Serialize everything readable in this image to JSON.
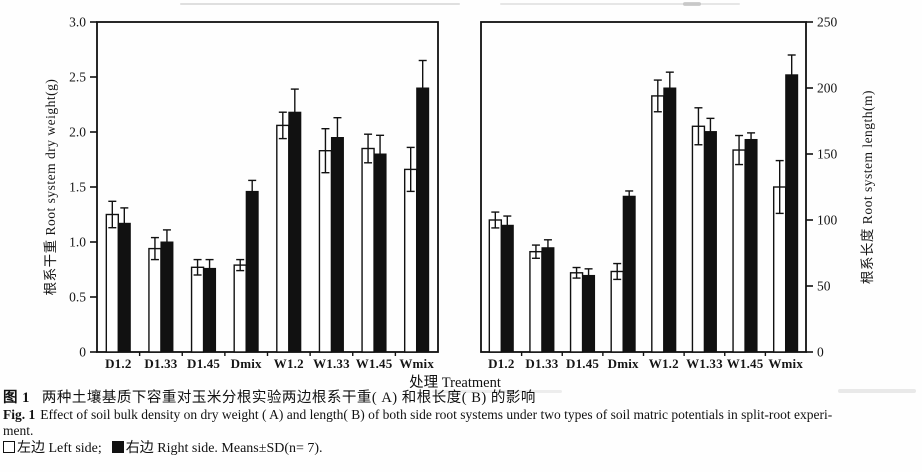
{
  "figure": {
    "xlabel": "处理 Treatment",
    "caption": {
      "fig_label_zh": "图 1",
      "caption_zh": "两种土壤基质下容重对玉米分根实验两边根系干重( A) 和根长度( B) 的影响",
      "fig_label_en": "Fig. 1",
      "caption_en_line1": "Effect of soil bulk density on dry weight ( A) and length( B) of both side root systems under two types of soil matric potentials in split-root experi-",
      "caption_en_line2": "ment.",
      "legend": {
        "left_marker": "□",
        "left_label": "左边 Left side;",
        "right_marker": "■",
        "right_label": "右边 Right side. Means±SD(n= 7)."
      }
    },
    "colors": {
      "ink": "#111111",
      "open_bar_fill": "#ffffff",
      "filled_bar_fill": "#000000",
      "background": "#fefefe"
    }
  },
  "chart_data": [
    {
      "type": "bar",
      "panel": "A",
      "title": "",
      "xlabel": "处理 Treatment",
      "ylabel": "根系干重 Root system dry weight(g)",
      "yaxis_side": "left",
      "ylim": [
        0,
        3.0
      ],
      "yticks": [
        "0",
        "0.5",
        "1.0",
        "1.5",
        "2.0",
        "2.5",
        "3.0"
      ],
      "grid": false,
      "categories": [
        "D1.2",
        "D1.33",
        "D1.45",
        "Dmix",
        "W1.2",
        "W1.33",
        "W1.45",
        "Wmix"
      ],
      "series": [
        {
          "name": "左边 Left side",
          "style": "open",
          "values": [
            1.25,
            0.94,
            0.77,
            0.79,
            2.06,
            1.83,
            1.85,
            1.66
          ],
          "sd": [
            0.12,
            0.1,
            0.07,
            0.05,
            0.12,
            0.2,
            0.13,
            0.2
          ]
        },
        {
          "name": "右边 Right side",
          "style": "filled",
          "values": [
            1.17,
            1.0,
            0.76,
            1.46,
            2.18,
            1.95,
            1.8,
            2.4
          ],
          "sd": [
            0.14,
            0.11,
            0.08,
            0.1,
            0.21,
            0.18,
            0.17,
            0.25
          ]
        }
      ]
    },
    {
      "type": "bar",
      "panel": "B",
      "title": "",
      "xlabel": "处理 Treatment",
      "ylabel": "根系长度 Root system length(m)",
      "yaxis_side": "right",
      "ylim": [
        0,
        250
      ],
      "yticks": [
        "0",
        "50",
        "100",
        "150",
        "200",
        "250"
      ],
      "grid": false,
      "categories": [
        "D1.2",
        "D1.33",
        "D1.45",
        "Dmix",
        "W1.2",
        "W1.33",
        "W1.45",
        "Wmix"
      ],
      "series": [
        {
          "name": "左边 Left side",
          "style": "open",
          "values": [
            100,
            76,
            60,
            61,
            194,
            171,
            153,
            125
          ],
          "sd": [
            6,
            5,
            4,
            6,
            12,
            14,
            11,
            20
          ]
        },
        {
          "name": "右边 Right side",
          "style": "filled",
          "values": [
            96,
            79,
            58,
            118,
            200,
            167,
            161,
            210
          ],
          "sd": [
            7,
            6,
            5,
            4,
            12,
            10,
            5,
            15
          ]
        }
      ]
    }
  ]
}
